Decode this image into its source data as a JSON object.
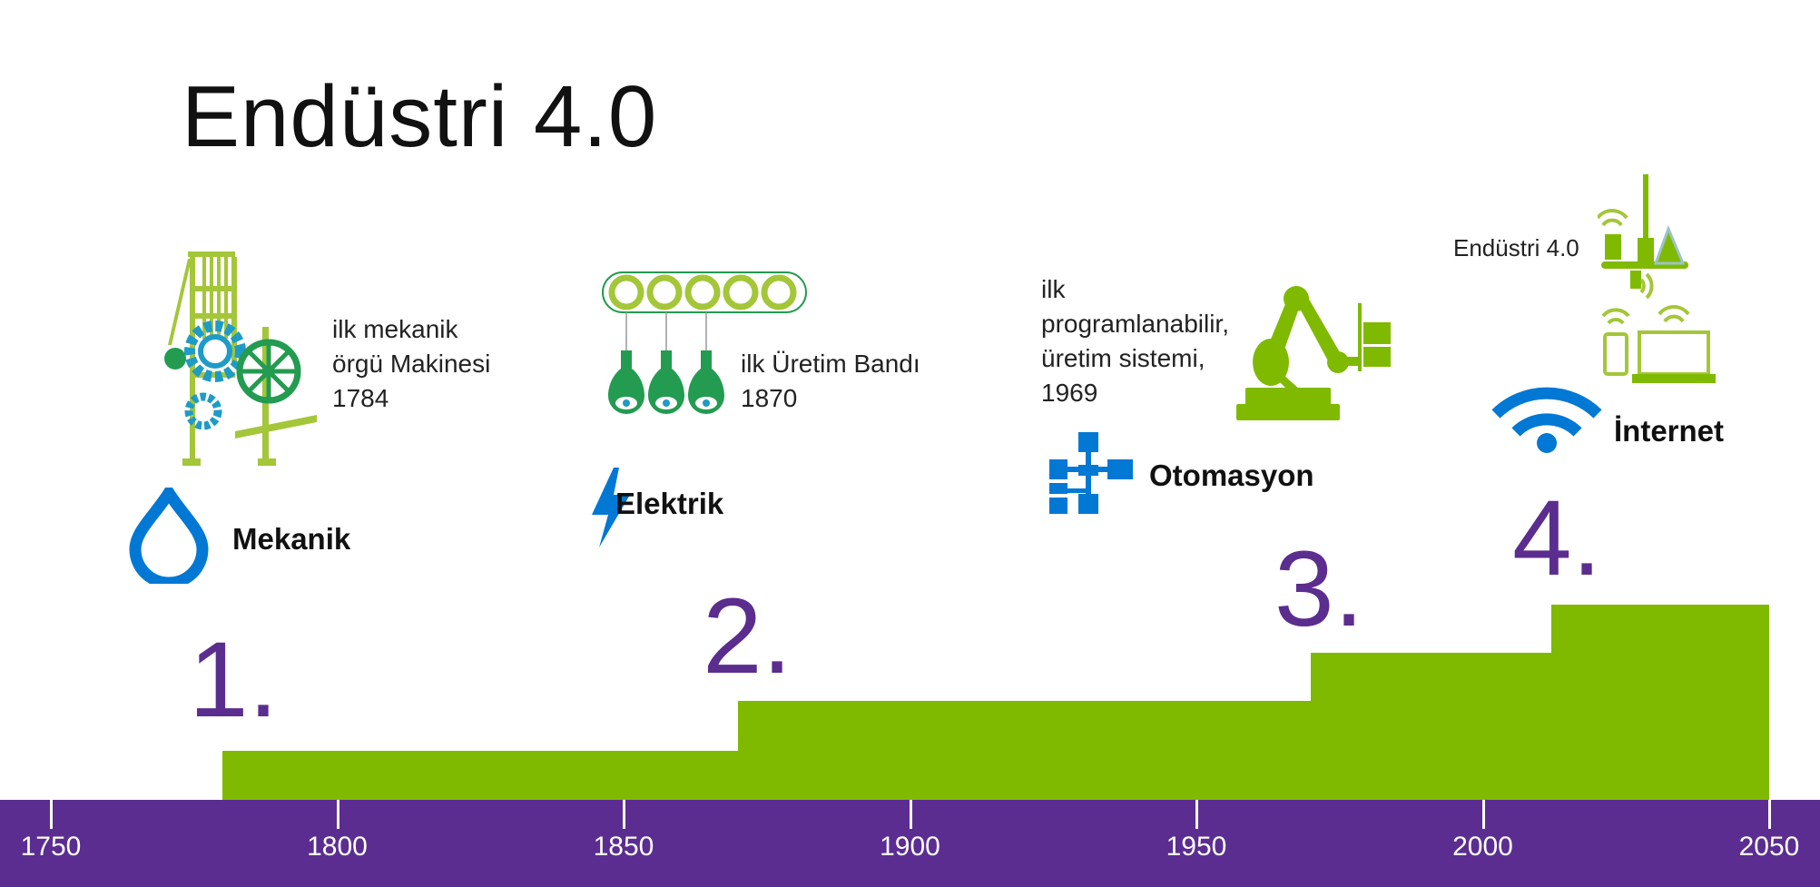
{
  "title": "Endüstri 4.0",
  "colors": {
    "accent_green": "#7fba00",
    "purple": "#5b2d90",
    "blue": "#0078d4",
    "dark_green": "#239b50",
    "teal": "#1e9bc8"
  },
  "timeline": {
    "ticks": [
      "1750",
      "1800",
      "1850",
      "1900",
      "1950",
      "2000",
      "2050"
    ],
    "range": [
      1750,
      2050
    ]
  },
  "eras": [
    {
      "label": "1.",
      "start": 1780,
      "category": "Mekanik",
      "icon": "water-drop-icon",
      "description": [
        "ilk mekanik",
        "örgü Makinesi",
        "1784"
      ]
    },
    {
      "label": "2.",
      "start": 1870,
      "category": "Elektrik",
      "icon": "lightning-icon",
      "description": [
        "ilk Üretim Bandı",
        "1870"
      ]
    },
    {
      "label": "3.",
      "start": 1970,
      "category": "Otomasyon",
      "icon": "network-icon",
      "description": [
        "ilk",
        "programlanabilir,",
        "üretim sistemi,",
        "1969"
      ]
    },
    {
      "label": "4.",
      "start": 2012,
      "category": "İnternet",
      "icon": "wifi-icon",
      "description": [
        "Endüstri 4.0"
      ]
    }
  ],
  "end_year": 2050
}
